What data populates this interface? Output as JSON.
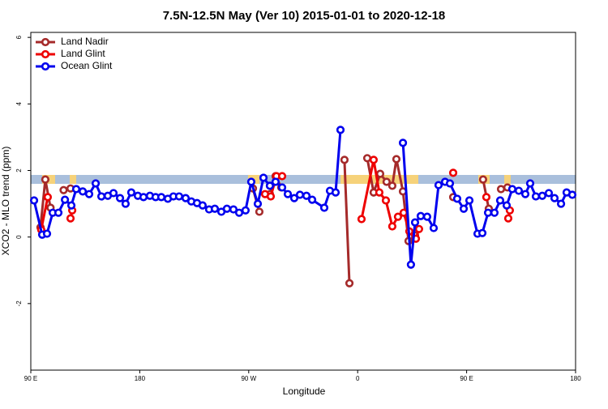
{
  "chart_data": {
    "type": "line",
    "title": "7.5N-12.5N May (Ver 10)   2015-01-01 to 2020-12-18",
    "x_label": "Longitude",
    "y_label": "XCO2 - MLO trend (ppm)",
    "xlim": [
      90,
      540
    ],
    "ylim": [
      -4,
      6.15
    ],
    "xticks": [
      {
        "value": 90,
        "label": "90 E"
      },
      {
        "value": 180,
        "label": "180"
      },
      {
        "value": 270,
        "label": "90 W"
      },
      {
        "value": 360,
        "label": "0"
      },
      {
        "value": 450,
        "label": "90 E"
      },
      {
        "value": 540,
        "label": "180"
      }
    ],
    "yticks": [
      -2,
      0,
      2,
      4,
      6
    ],
    "legend": "topleft",
    "series": [
      {
        "name": "Land Nadir",
        "color": "#a52a2a",
        "x": [
          98.0,
          102.0,
          106.3,
          null,
          117.1,
          122.8,
          null,
          273.5,
          278.8,
          null,
          287.5,
          292.2,
          296.9,
          null,
          349.1,
          353.2,
          null,
          367.9,
          373.2,
          378.6,
          383.9,
          388.6,
          392.0,
          397.4,
          402.0,
          407.4,
          null,
          438.9,
          null,
          463.6,
          468.3,
          null,
          478.4,
          483.7
        ],
        "values": [
          0.29,
          1.73,
          0.88,
          null,
          1.41,
          1.46,
          null,
          1.46,
          0.76,
          null,
          1.29,
          1.83,
          1.49,
          null,
          2.32,
          -1.39,
          null,
          2.37,
          1.34,
          1.9,
          1.66,
          1.54,
          2.34,
          1.37,
          -0.12,
          0.05,
          null,
          1.2,
          null,
          1.73,
          0.85,
          null,
          1.44,
          1.49
        ]
      },
      {
        "name": "Land Glint",
        "color": "#ee0000",
        "x": [
          98.6,
          104.0,
          null,
          122.8,
          124.2,
          null,
          283.5,
          288.2,
          292.9,
          297.6,
          null,
          363.2,
          373.2,
          377.9,
          383.3,
          388.6,
          393.3,
          398.0,
          402.7,
          408.1,
          410.7,
          null,
          438.9,
          null,
          466.3,
          null,
          484.4,
          485.7
        ],
        "values": [
          0.22,
          1.2,
          null,
          0.56,
          0.8,
          null,
          1.29,
          1.22,
          1.83,
          1.83,
          null,
          0.54,
          2.32,
          1.34,
          1.1,
          0.32,
          0.61,
          0.73,
          0.17,
          -0.05,
          0.24,
          null,
          1.93,
          null,
          1.2,
          null,
          0.56,
          0.8
        ]
      },
      {
        "name": "Ocean Glint",
        "color": "#0000ee",
        "x": [
          92.7,
          99.4,
          103.4,
          108.1,
          112.8,
          118.2,
          123.5,
          127.5,
          132.9,
          138.2,
          143.6,
          148.3,
          153.6,
          158.3,
          163.7,
          168.3,
          173.0,
          178.4,
          183.1,
          188.4,
          193.1,
          197.8,
          203.2,
          207.8,
          212.5,
          217.9,
          222.6,
          227.3,
          231.9,
          237.3,
          242.0,
          247.4,
          252.0,
          257.4,
          262.1,
          267.4,
          272.1,
          277.5,
          282.2,
          287.5,
          292.2,
          297.6,
          302.3,
          307.6,
          312.3,
          317.7,
          322.4,
          332.4,
          337.1,
          341.8,
          345.8,
          null,
          397.4,
          404.0,
          407.4,
          412.1,
          417.4,
          422.8,
          426.8,
          432.2,
          436.2,
          442.2,
          447.6,
          452.3,
          459.0,
          463.0,
          467.7,
          473.0,
          477.7,
          483.1,
          487.7,
          493.1,
          498.5,
          502.5,
          507.2,
          512.5,
          517.9,
          522.6,
          528.0,
          532.6,
          537.3
        ],
        "values": [
          1.1,
          0.07,
          0.1,
          0.73,
          0.73,
          1.12,
          0.95,
          1.44,
          1.37,
          1.29,
          1.61,
          1.22,
          1.24,
          1.32,
          1.17,
          1.0,
          1.34,
          1.24,
          1.2,
          1.24,
          1.2,
          1.2,
          1.15,
          1.22,
          1.22,
          1.17,
          1.07,
          1.02,
          0.95,
          0.83,
          0.85,
          0.76,
          0.85,
          0.83,
          0.73,
          0.8,
          1.66,
          1.0,
          1.78,
          1.54,
          1.66,
          1.49,
          1.29,
          1.17,
          1.27,
          1.24,
          1.12,
          0.88,
          1.39,
          1.34,
          3.22,
          null,
          2.83,
          -0.83,
          0.44,
          0.63,
          0.61,
          0.27,
          1.56,
          1.66,
          1.61,
          1.15,
          0.85,
          1.1,
          0.1,
          0.12,
          0.73,
          0.73,
          1.1,
          0.95,
          1.44,
          1.39,
          1.29,
          1.61,
          1.22,
          1.24,
          1.32,
          1.17,
          1.0,
          1.34,
          1.27
        ]
      }
    ]
  }
}
